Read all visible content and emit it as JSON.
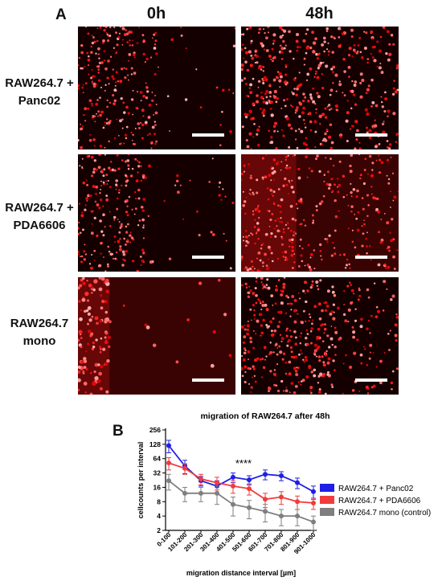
{
  "figure": {
    "panel_a_label": "A",
    "panel_b_label": "B",
    "col_headers": [
      "0h",
      "48h"
    ],
    "rows": [
      {
        "label_line1": "RAW264.7 +",
        "label_line2": "Panc02"
      },
      {
        "label_line1": "RAW264.7 +",
        "label_line2": "PDA6606"
      },
      {
        "label_line1": "RAW264.7",
        "label_line2": "mono"
      }
    ]
  },
  "chart_data": {
    "type": "line",
    "title": "migration of RAW264.7 after 48h",
    "xlabel": "migration distance interval [µm]",
    "ylabel": "cellcounts per interval",
    "y_scale": "log2",
    "ylim": [
      2,
      256
    ],
    "y_ticks": [
      2,
      4,
      8,
      16,
      32,
      64,
      128,
      256
    ],
    "categories": [
      "0-100",
      "101-200",
      "201-300",
      "301-400",
      "401-500",
      "501-600",
      "601-700",
      "701-800",
      "801-900",
      "901-1000"
    ],
    "annotation": "****",
    "legend_position": "right",
    "series": [
      {
        "name": "RAW264.7 + Panc02",
        "color": "#1f1fe6",
        "values": [
          120,
          45,
          22,
          17,
          26,
          23,
          30,
          28,
          20,
          13
        ],
        "errors": [
          35,
          14,
          5,
          5,
          6,
          5,
          7,
          6,
          5,
          4
        ]
      },
      {
        "name": "RAW264.7 + PDA6606",
        "color": "#f03c3c",
        "values": [
          52,
          40,
          24,
          20,
          17,
          15,
          9,
          10,
          8,
          7.5
        ],
        "errors": [
          15,
          10,
          6,
          6,
          5,
          4,
          3,
          3,
          2.5,
          2
        ]
      },
      {
        "name": "RAW264.7 mono (control)",
        "color": "#7f7f7f",
        "values": [
          22,
          12,
          12,
          12,
          7,
          6,
          5,
          4,
          4,
          3
        ],
        "errors": [
          8,
          4,
          4,
          5,
          3,
          2.5,
          2,
          1.5,
          1.5,
          1
        ]
      }
    ]
  }
}
